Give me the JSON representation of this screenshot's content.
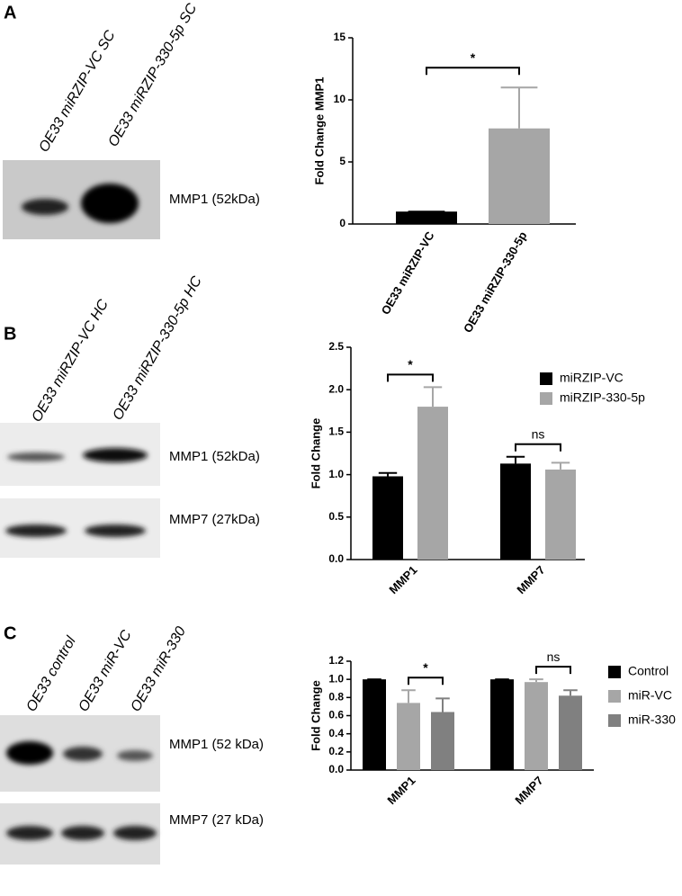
{
  "panels": [
    {
      "letter": "A",
      "lanes": [
        "OE33 miRZIP-VC SC",
        "OE33 miRZIP-330-5p SC"
      ],
      "blots": [
        "MMP1 (52kDa)"
      ]
    },
    {
      "letter": "B",
      "lanes": [
        "OE33 miRZIP-VC HC",
        "OE33 miRZIP-330-5p HC"
      ],
      "blots": [
        "MMP1 (52kDa)",
        "MMP7 (27kDa)"
      ]
    },
    {
      "letter": "C",
      "lanes": [
        "OE33 control",
        "OE33 miR-VC",
        "OE33 miR-330"
      ],
      "blots": [
        "MMP1 (52 kDa)",
        "MMP7 (27 kDa)"
      ]
    }
  ],
  "chart_data": [
    {
      "type": "bar",
      "ylabel": "Fold Change MMP1",
      "categories": [
        "OE33 miRZIP-VC",
        "OE33 miRZIP-330-5p"
      ],
      "values": [
        1,
        7.7
      ],
      "errors": [
        0,
        3.3
      ],
      "colors": [
        "#000000",
        "#a6a6a6"
      ],
      "ylim": [
        0,
        15
      ],
      "yticks": [
        0,
        5,
        10,
        15
      ],
      "significance": [
        "*"
      ]
    },
    {
      "type": "bar",
      "ylabel": "Fold Change",
      "categories": [
        "MMP1",
        "MMP7"
      ],
      "series": [
        {
          "name": "miRZIP-VC",
          "color": "#000000",
          "values": [
            0.98,
            1.13
          ],
          "errors": [
            0.04,
            0.08
          ]
        },
        {
          "name": "miRZIP-330-5p",
          "color": "#a6a6a6",
          "values": [
            1.8,
            1.06
          ],
          "errors": [
            0.23,
            0.08
          ]
        }
      ],
      "ylim": [
        0,
        2.5
      ],
      "yticks": [
        {
          "value": 0,
          "label": "0.0"
        },
        0.5,
        {
          "value": 1,
          "label": "1.0"
        },
        1.5,
        {
          "value": 2,
          "label": "2.0"
        },
        2.5
      ],
      "significance": [
        "*",
        "ns"
      ],
      "legend": "top-right"
    },
    {
      "type": "bar",
      "ylabel": "Fold Change",
      "categories": [
        "MMP1",
        "MMP7"
      ],
      "series": [
        {
          "name": "Control",
          "color": "#000000",
          "values": [
            1,
            1
          ],
          "errors": [
            0,
            0
          ]
        },
        {
          "name": "miR-VC",
          "color": "#a6a6a6",
          "values": [
            0.74,
            0.97
          ],
          "errors": [
            0.14,
            0.03
          ]
        },
        {
          "name": "miR-330",
          "color": "#808080",
          "values": [
            0.64,
            0.82
          ],
          "errors": [
            0.15,
            0.06
          ]
        }
      ],
      "ylim": [
        0,
        1.2
      ],
      "yticks": [
        {
          "value": 0,
          "label": "0.0"
        },
        0.2,
        0.4,
        0.6,
        0.8,
        {
          "value": 1,
          "label": "1.0"
        },
        1.2
      ],
      "significance": [
        "*",
        "ns"
      ],
      "legend": "right"
    }
  ]
}
